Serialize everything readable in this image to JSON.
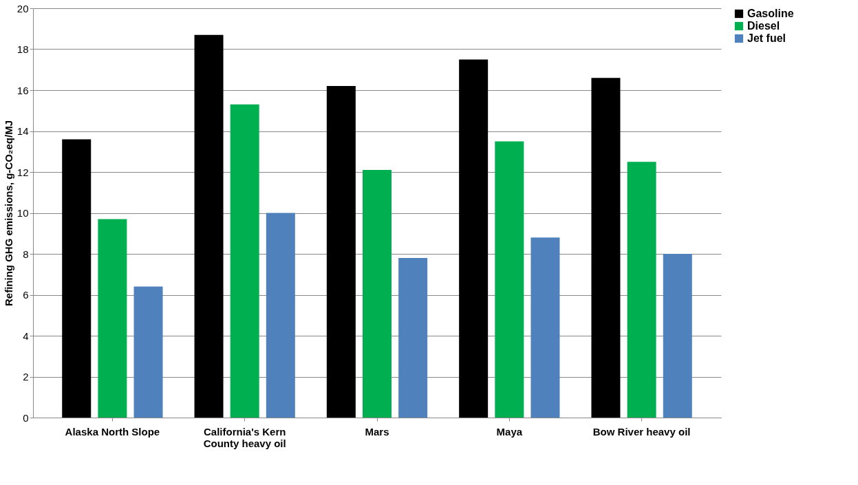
{
  "chart_data": {
    "type": "bar",
    "ylabel": "Refining GHG emissions, g-CO₂eq/MJ",
    "categories": [
      "Alaska North Slope",
      "California's Kern County heavy oil",
      "Mars",
      "Maya",
      "Bow River heavy oil"
    ],
    "series": [
      {
        "name": "Gasoline",
        "color": "#000000",
        "values": [
          13.6,
          18.7,
          16.2,
          17.5,
          16.6
        ]
      },
      {
        "name": "Diesel",
        "color": "#00b050",
        "values": [
          9.7,
          15.3,
          12.1,
          13.5,
          12.5
        ]
      },
      {
        "name": "Jet fuel",
        "color": "#4f81bd",
        "values": [
          6.4,
          10.0,
          7.8,
          8.8,
          8.0
        ]
      }
    ],
    "ylim": [
      0,
      20
    ],
    "yticks": [
      0,
      2,
      4,
      6,
      8,
      10,
      12,
      14,
      16,
      18,
      20
    ],
    "grid": "y",
    "legend": "right"
  }
}
